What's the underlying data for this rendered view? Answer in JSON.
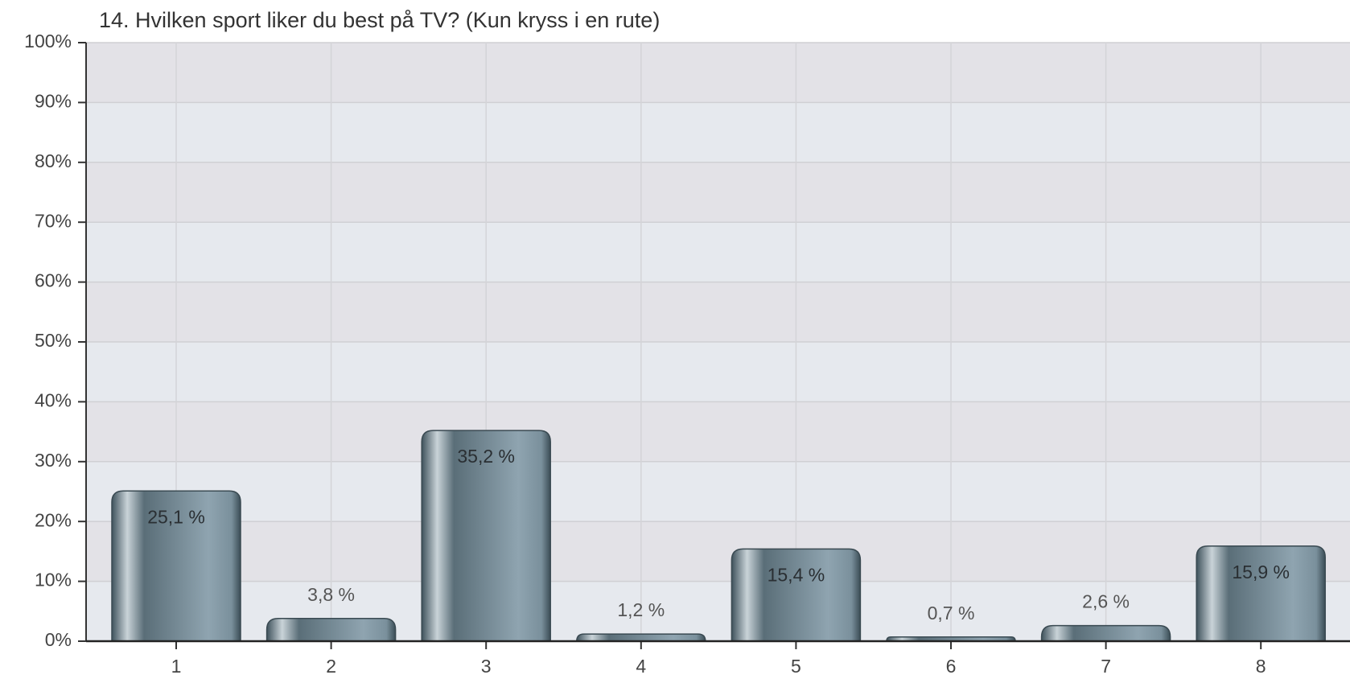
{
  "chart_data": {
    "type": "bar",
    "title": "14. Hvilken sport liker du best på TV? (Kun kryss i en rute)",
    "categories": [
      "1",
      "2",
      "3",
      "4",
      "5",
      "6",
      "7",
      "8"
    ],
    "values": [
      25.1,
      3.8,
      35.2,
      1.2,
      15.4,
      0.7,
      2.6,
      15.9
    ],
    "value_labels": [
      "25,1 %",
      "3,8 %",
      "35,2 %",
      "1,2 %",
      "15,4 %",
      "0,7 %",
      "2,6 %",
      "15,9 %"
    ],
    "color": "#6b828f",
    "ylim": [
      0,
      100
    ],
    "yticks": [
      {
        "value": 0,
        "label": "0%"
      },
      {
        "value": 10,
        "label": "10%"
      },
      {
        "value": 20,
        "label": "20%"
      },
      {
        "value": 30,
        "label": "30%"
      },
      {
        "value": 40,
        "label": "40%"
      },
      {
        "value": 50,
        "label": "50%"
      },
      {
        "value": 60,
        "label": "60%"
      },
      {
        "value": 70,
        "label": "70%"
      },
      {
        "value": 80,
        "label": "80%"
      },
      {
        "value": 90,
        "label": "90%"
      },
      {
        "value": 100,
        "label": "100%"
      }
    ],
    "grid": true
  }
}
